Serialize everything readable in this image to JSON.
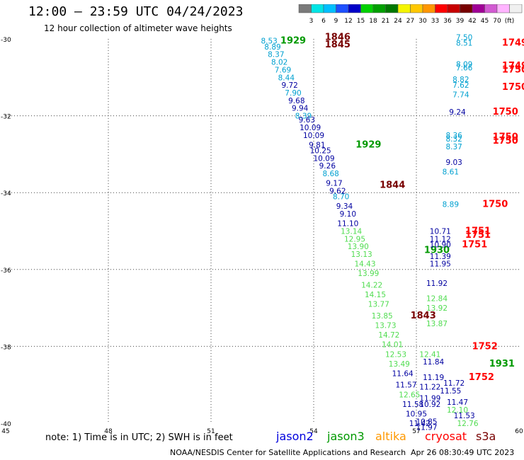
{
  "header": {
    "title": "12:00 – 23:59 UTC 04/24/2023",
    "subtitle": "12 hour collection of altimeter wave heights"
  },
  "scale": {
    "colors": [
      "#7a7a7a",
      "#00e5e5",
      "#00bfff",
      "#1e50ff",
      "#0000c8",
      "#00d200",
      "#00a000",
      "#007800",
      "#f5f500",
      "#ffc800",
      "#ff9600",
      "#ff0000",
      "#c80000",
      "#780000",
      "#a00096",
      "#d25ad2",
      "#ffb4ff",
      "#f0f0f0"
    ],
    "labels": [
      "3",
      "6",
      "9",
      "12",
      "15",
      "18",
      "21",
      "24",
      "27",
      "30",
      "33",
      "36",
      "39",
      "42",
      "45",
      "70",
      "(ft)"
    ]
  },
  "chart_data": {
    "type": "scatter",
    "title": "12:00 – 23:59 UTC 04/24/2023",
    "subtitle": "12 hour collection of altimeter wave heights",
    "x_ticks": [
      "45",
      "48",
      "51",
      "54",
      "57",
      "60"
    ],
    "y_ticks": [
      "-30",
      "-32",
      "-34",
      "-36",
      "-38",
      "-40"
    ],
    "xlim": [
      45,
      60
    ],
    "ylim": [
      -40,
      -30
    ],
    "grid": true,
    "units": "ft",
    "series": [
      {
        "name": "jason2",
        "color": "#0000cc",
        "points": []
      },
      {
        "name": "jason3",
        "color": "#009900",
        "points": [
          {
            "x": 53.4,
            "y": -30.05,
            "label": "1929",
            "bold": true
          },
          {
            "x": 55.6,
            "y": -32.75,
            "label": "1929",
            "bold": true
          },
          {
            "x": 57.6,
            "y": -35.5,
            "label": "1930",
            "bold": true
          },
          {
            "x": 59.5,
            "y": -38.45,
            "label": "1931",
            "bold": true
          }
        ]
      },
      {
        "name": "altika",
        "color": "#ff9900",
        "points": []
      },
      {
        "name": "cryosat",
        "color": "#ff0000",
        "points": [
          {
            "x": 60.0,
            "y": -30.1,
            "label": "1749",
            "bold": true
          },
          {
            "x": 60.0,
            "y": -30.7,
            "label": "1749",
            "bold": true
          },
          {
            "x": 60.0,
            "y": -30.8,
            "label": "1750",
            "bold": true
          },
          {
            "x": 59.9,
            "y": -31.25,
            "label": "1750",
            "bold": true
          },
          {
            "x": 59.6,
            "y": -31.9,
            "label": "1750",
            "bold": true
          },
          {
            "x": 59.6,
            "y": -32.55,
            "label": "1750",
            "bold": true
          },
          {
            "x": 59.6,
            "y": -32.65,
            "label": "1750",
            "bold": true
          },
          {
            "x": 59.3,
            "y": -34.3,
            "label": "1750",
            "bold": true
          },
          {
            "x": 58.8,
            "y": -35.0,
            "label": "1751",
            "bold": true
          },
          {
            "x": 58.8,
            "y": -35.1,
            "label": "1751",
            "bold": true
          },
          {
            "x": 58.7,
            "y": -35.35,
            "label": "1751",
            "bold": true
          },
          {
            "x": 59.0,
            "y": -38.0,
            "label": "1752",
            "bold": true
          },
          {
            "x": 58.9,
            "y": -38.8,
            "label": "1752",
            "bold": true
          }
        ]
      },
      {
        "name": "s3a",
        "color": "#780000",
        "points": [
          {
            "x": 54.7,
            "y": -29.95,
            "label": "1846",
            "bold": true
          },
          {
            "x": 54.7,
            "y": -30.15,
            "label": "1845",
            "bold": true
          },
          {
            "x": 56.3,
            "y": -33.8,
            "label": "1844",
            "bold": true
          },
          {
            "x": 57.2,
            "y": -37.2,
            "label": "1843",
            "bold": true
          }
        ]
      },
      {
        "name": "wave heights (ft)",
        "color": "#000000",
        "points": [
          {
            "x": 52.7,
            "y": -30.05,
            "label": "8.53",
            "color": "#00a0d0"
          },
          {
            "x": 52.8,
            "y": -30.2,
            "label": "8.89",
            "color": "#00a0d0"
          },
          {
            "x": 52.9,
            "y": -30.4,
            "label": "8.37",
            "color": "#00a0d0"
          },
          {
            "x": 53.0,
            "y": -30.6,
            "label": "8.02",
            "color": "#00a0d0"
          },
          {
            "x": 53.1,
            "y": -30.8,
            "label": "7.69",
            "color": "#00a0d0"
          },
          {
            "x": 53.2,
            "y": -31.0,
            "label": "8.44",
            "color": "#00a0d0"
          },
          {
            "x": 53.3,
            "y": -31.2,
            "label": "9.72",
            "color": "#0000a0"
          },
          {
            "x": 53.4,
            "y": -31.4,
            "label": "7.90",
            "color": "#00a0d0"
          },
          {
            "x": 53.5,
            "y": -31.6,
            "label": "9.68",
            "color": "#0000a0"
          },
          {
            "x": 53.6,
            "y": -31.8,
            "label": "9.94",
            "color": "#0000a0"
          },
          {
            "x": 53.7,
            "y": -32.0,
            "label": "8.39",
            "color": "#00a0d0"
          },
          {
            "x": 53.8,
            "y": -32.1,
            "label": "9.63",
            "color": "#0000a0"
          },
          {
            "x": 53.9,
            "y": -32.3,
            "label": "10.09",
            "color": "#0000a0"
          },
          {
            "x": 54.0,
            "y": -32.5,
            "label": "10.09",
            "color": "#0000a0"
          },
          {
            "x": 54.1,
            "y": -32.75,
            "label": "9.81",
            "color": "#0000a0"
          },
          {
            "x": 54.2,
            "y": -32.9,
            "label": "10.25",
            "color": "#0000a0"
          },
          {
            "x": 54.3,
            "y": -33.1,
            "label": "10.09",
            "color": "#0000a0"
          },
          {
            "x": 54.4,
            "y": -33.3,
            "label": "9.26",
            "color": "#0000a0"
          },
          {
            "x": 54.5,
            "y": -33.5,
            "label": "8.68",
            "color": "#00a0d0"
          },
          {
            "x": 54.6,
            "y": -33.75,
            "label": "9.17",
            "color": "#0000a0"
          },
          {
            "x": 54.7,
            "y": -33.95,
            "label": "9.62",
            "color": "#0000a0"
          },
          {
            "x": 54.8,
            "y": -34.1,
            "label": "8.70",
            "color": "#00a0d0"
          },
          {
            "x": 54.9,
            "y": -34.35,
            "label": "9.34",
            "color": "#0000a0"
          },
          {
            "x": 55.0,
            "y": -34.55,
            "label": "9.10",
            "color": "#0000a0"
          },
          {
            "x": 55.0,
            "y": -34.8,
            "label": "11.10",
            "color": "#0000a0"
          },
          {
            "x": 55.1,
            "y": -35.0,
            "label": "13.14",
            "color": "#50dc50"
          },
          {
            "x": 55.2,
            "y": -35.2,
            "label": "12.95",
            "color": "#50dc50"
          },
          {
            "x": 55.3,
            "y": -35.4,
            "label": "13.90",
            "color": "#50dc50"
          },
          {
            "x": 55.4,
            "y": -35.6,
            "label": "13.13",
            "color": "#50dc50"
          },
          {
            "x": 55.5,
            "y": -35.85,
            "label": "14.43",
            "color": "#50dc50"
          },
          {
            "x": 55.6,
            "y": -36.1,
            "label": "13.99",
            "color": "#50dc50"
          },
          {
            "x": 55.7,
            "y": -36.4,
            "label": "14.22",
            "color": "#50dc50"
          },
          {
            "x": 55.8,
            "y": -36.65,
            "label": "14.15",
            "color": "#50dc50"
          },
          {
            "x": 55.9,
            "y": -36.9,
            "label": "13.77",
            "color": "#50dc50"
          },
          {
            "x": 56.0,
            "y": -37.2,
            "label": "13.85",
            "color": "#50dc50"
          },
          {
            "x": 56.1,
            "y": -37.45,
            "label": "13.73",
            "color": "#50dc50"
          },
          {
            "x": 56.2,
            "y": -37.7,
            "label": "14.72",
            "color": "#50dc50"
          },
          {
            "x": 56.3,
            "y": -37.95,
            "label": "14.01",
            "color": "#50dc50"
          },
          {
            "x": 56.4,
            "y": -38.2,
            "label": "12.53",
            "color": "#50dc50"
          },
          {
            "x": 56.5,
            "y": -38.45,
            "label": "13.49",
            "color": "#50dc50"
          },
          {
            "x": 56.6,
            "y": -38.7,
            "label": "11.64",
            "color": "#0000a0"
          },
          {
            "x": 56.7,
            "y": -39.0,
            "label": "11.57",
            "color": "#0000a0"
          },
          {
            "x": 56.8,
            "y": -39.25,
            "label": "12.65",
            "color": "#50dc50"
          },
          {
            "x": 56.9,
            "y": -39.5,
            "label": "11.58",
            "color": "#0000a0"
          },
          {
            "x": 57.0,
            "y": -39.75,
            "label": "10.95",
            "color": "#0000a0"
          },
          {
            "x": 57.1,
            "y": -40.0,
            "label": "11.42",
            "color": "#0000a0"
          },
          {
            "x": 58.4,
            "y": -29.95,
            "label": "7.50",
            "color": "#00a0d0"
          },
          {
            "x": 58.4,
            "y": -30.1,
            "label": "8.51",
            "color": "#00a0d0"
          },
          {
            "x": 58.4,
            "y": -30.65,
            "label": "8.09",
            "color": "#00a0d0"
          },
          {
            "x": 58.4,
            "y": -30.75,
            "label": "7.66",
            "color": "#00a0d0"
          },
          {
            "x": 58.3,
            "y": -31.05,
            "label": "8.82",
            "color": "#00a0d0"
          },
          {
            "x": 58.3,
            "y": -31.2,
            "label": "7.62",
            "color": "#00a0d0"
          },
          {
            "x": 58.3,
            "y": -31.45,
            "label": "7.74",
            "color": "#00a0d0"
          },
          {
            "x": 58.2,
            "y": -31.9,
            "label": "9.24",
            "color": "#0000a0"
          },
          {
            "x": 58.1,
            "y": -32.5,
            "label": "8.36",
            "color": "#00a0d0"
          },
          {
            "x": 58.1,
            "y": -32.6,
            "label": "8.32",
            "color": "#00a0d0"
          },
          {
            "x": 58.1,
            "y": -32.8,
            "label": "8.37",
            "color": "#00a0d0"
          },
          {
            "x": 58.1,
            "y": -33.2,
            "label": "9.03",
            "color": "#0000a0"
          },
          {
            "x": 58.0,
            "y": -33.45,
            "label": "8.61",
            "color": "#00a0d0"
          },
          {
            "x": 58.0,
            "y": -34.3,
            "label": "8.89",
            "color": "#00a0d0"
          },
          {
            "x": 57.7,
            "y": -35.0,
            "label": "10.71",
            "color": "#0000a0"
          },
          {
            "x": 57.7,
            "y": -35.2,
            "label": "11.12",
            "color": "#0000a0"
          },
          {
            "x": 57.7,
            "y": -35.35,
            "label": "10.90",
            "color": "#0000a0"
          },
          {
            "x": 57.7,
            "y": -35.65,
            "label": "11.39",
            "color": "#0000a0"
          },
          {
            "x": 57.7,
            "y": -35.85,
            "label": "11.95",
            "color": "#0000a0"
          },
          {
            "x": 57.6,
            "y": -36.35,
            "label": "11.92",
            "color": "#0000a0"
          },
          {
            "x": 57.6,
            "y": -36.75,
            "label": "12.84",
            "color": "#50dc50"
          },
          {
            "x": 57.6,
            "y": -37.0,
            "label": "13.92",
            "color": "#50dc50"
          },
          {
            "x": 57.6,
            "y": -37.4,
            "label": "13.87",
            "color": "#50dc50"
          },
          {
            "x": 57.4,
            "y": -38.2,
            "label": "12.41",
            "color": "#50dc50"
          },
          {
            "x": 57.5,
            "y": -38.4,
            "label": "11.84",
            "color": "#0000a0"
          },
          {
            "x": 57.5,
            "y": -38.8,
            "label": "11.19",
            "color": "#0000a0"
          },
          {
            "x": 57.4,
            "y": -39.05,
            "label": "11.22",
            "color": "#0000a0"
          },
          {
            "x": 57.4,
            "y": -39.35,
            "label": "11.99",
            "color": "#0000a0"
          },
          {
            "x": 57.4,
            "y": -39.5,
            "label": "10.92",
            "color": "#0000a0"
          },
          {
            "x": 57.3,
            "y": -39.95,
            "label": "10.85",
            "color": "#0000a0"
          },
          {
            "x": 57.3,
            "y": -40.1,
            "label": "11.97",
            "color": "#0000a0"
          },
          {
            "x": 58.1,
            "y": -38.95,
            "label": "11.72",
            "color": "#0000a0"
          },
          {
            "x": 58.0,
            "y": -39.15,
            "label": "11.55",
            "color": "#0000a0"
          },
          {
            "x": 58.2,
            "y": -39.45,
            "label": "11.47",
            "color": "#0000a0"
          },
          {
            "x": 58.2,
            "y": -39.65,
            "label": "12.10",
            "color": "#50dc50"
          },
          {
            "x": 58.4,
            "y": -39.8,
            "label": "11.53",
            "color": "#0000a0"
          },
          {
            "x": 58.5,
            "y": -40.0,
            "label": "12.76",
            "color": "#50dc50"
          }
        ]
      }
    ]
  },
  "note": "note:  1) Time is in UTC; 2) SWH is in feet",
  "satellites": [
    {
      "name": "jason2",
      "color": "#0000dd"
    },
    {
      "name": "jason3",
      "color": "#009900"
    },
    {
      "name": "altika",
      "color": "#ff9900"
    },
    {
      "name": "cryosat",
      "color": "#ff0000"
    },
    {
      "name": "s3a",
      "color": "#780000"
    }
  ],
  "footer": "NOAA/NESDIS Center for Satellite Applications and Research",
  "credit": "Apr 26 08:30:49 UTC 2023"
}
